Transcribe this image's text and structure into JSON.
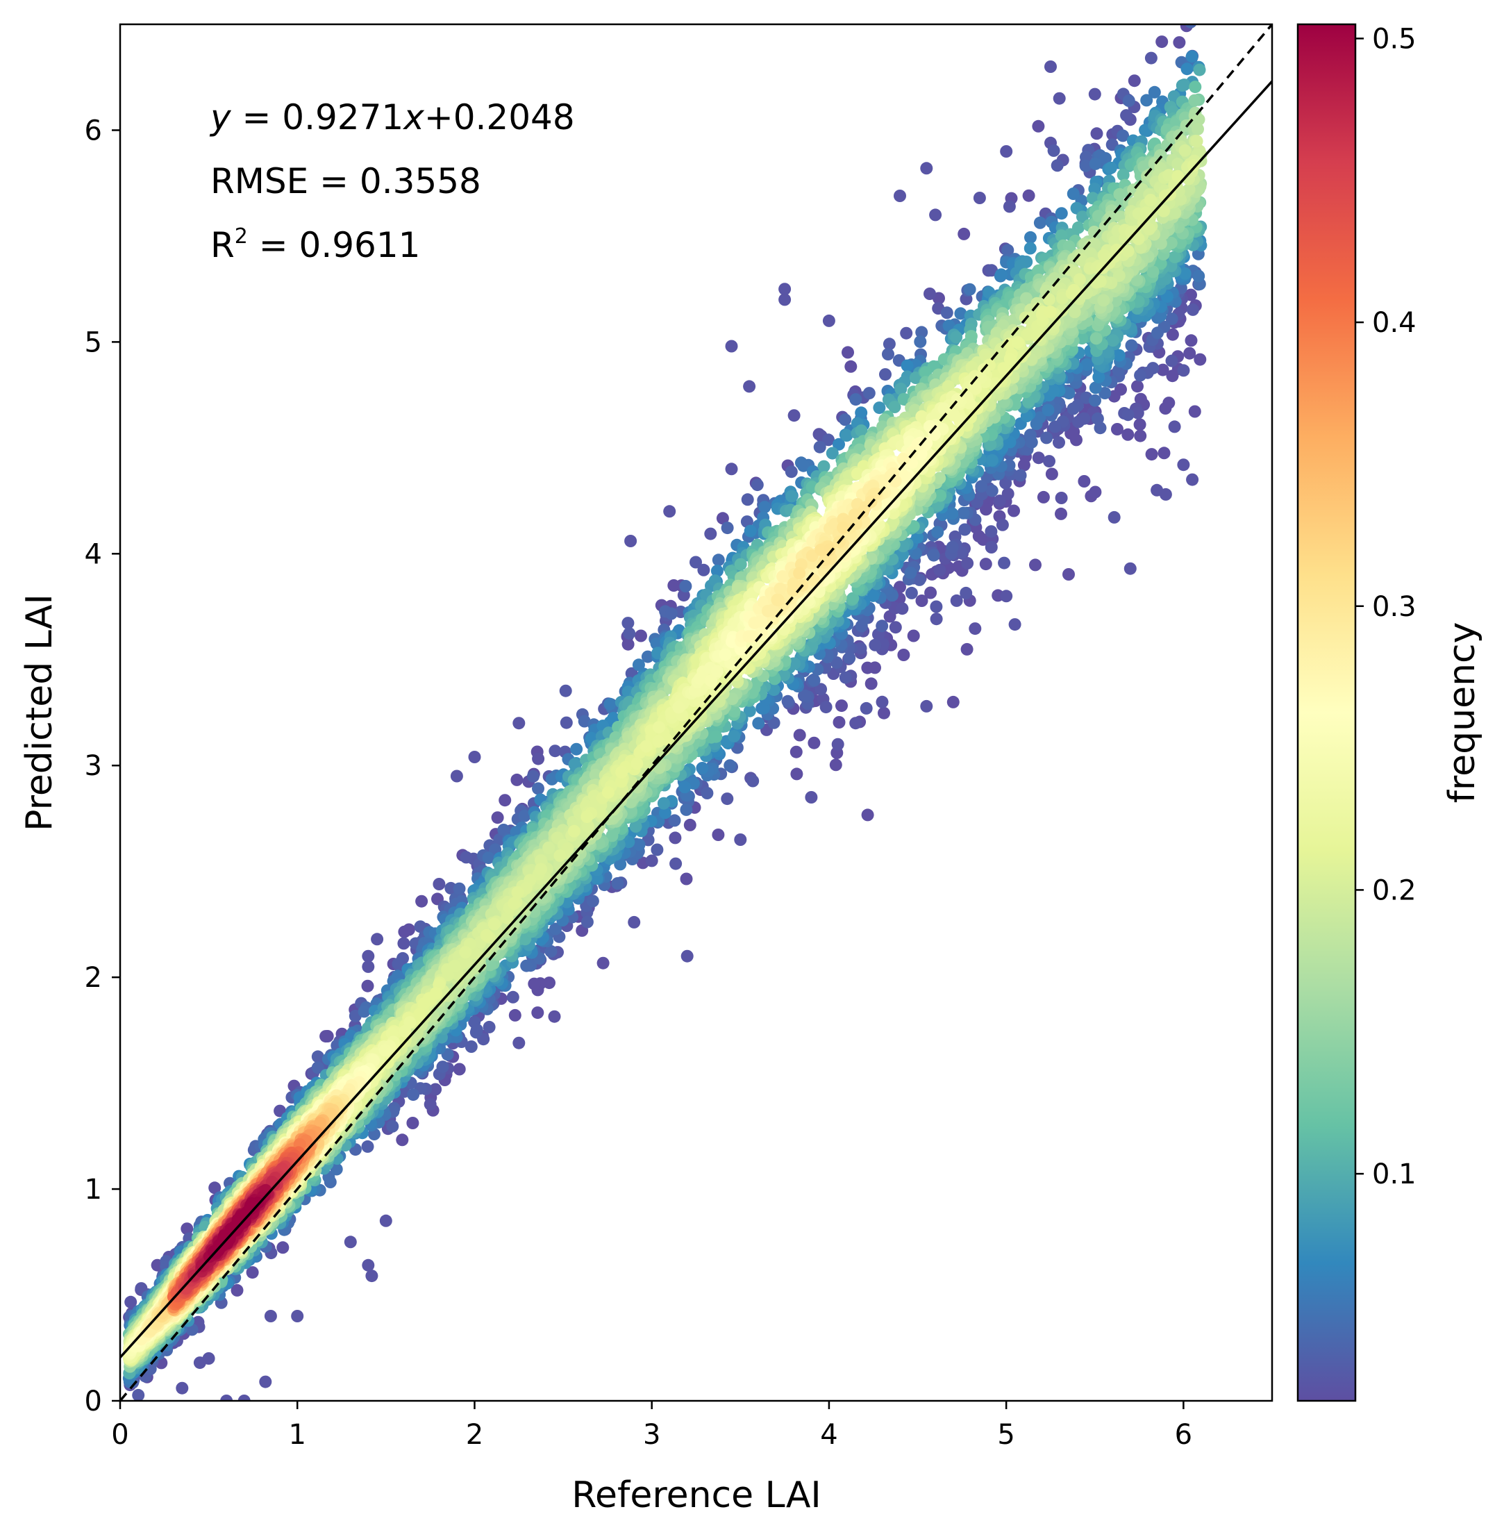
{
  "chart_data": {
    "type": "scatter",
    "subtype": "density-colored scatter",
    "xlabel": "Reference  LAI",
    "ylabel": "Predicted  LAI",
    "xlim": [
      0,
      6.5
    ],
    "ylim": [
      0,
      6.5
    ],
    "xticks": [
      0,
      1,
      2,
      3,
      4,
      5,
      6
    ],
    "yticks": [
      0,
      1,
      2,
      3,
      4,
      5,
      6
    ],
    "grid": false,
    "annotations": {
      "equation_y": "y",
      "equation_x": "x",
      "equation_eq": " = 0.9271",
      "equation_tail": "+0.2048",
      "rmse": "RMSE = 0.3558",
      "r2_base": "R",
      "r2_sup": "2",
      "r2_value": " = 0.9611"
    },
    "fit_line": {
      "slope": 0.9271,
      "intercept": 0.2048,
      "style": "solid",
      "color": "#000000"
    },
    "identity_line": {
      "slope": 1,
      "intercept": 0,
      "style": "dashed",
      "color": "#000000"
    },
    "colorbar": {
      "label": "frequency",
      "range": [
        0.02,
        0.505
      ],
      "ticks": [
        0.1,
        0.2,
        0.3,
        0.4,
        0.5
      ],
      "tick_labels": [
        "0.1",
        "0.2",
        "0.3",
        "0.4",
        "0.5"
      ],
      "colormap": "Spectral_r"
    },
    "data_summary": {
      "x_range": [
        0.05,
        6.1
      ],
      "y_range": [
        0.0,
        6.35
      ],
      "peak_density_x": 0.65,
      "peak_density_y": 0.7
    },
    "outliers": [
      [
        0.6,
        0.0
      ],
      [
        0.7,
        0.0
      ],
      [
        0.82,
        0.09
      ],
      [
        0.35,
        0.06
      ],
      [
        0.45,
        0.18
      ],
      [
        0.5,
        0.2
      ],
      [
        0.85,
        0.4
      ],
      [
        1.0,
        0.4
      ],
      [
        1.3,
        0.75
      ],
      [
        1.42,
        0.59
      ],
      [
        1.4,
        0.64
      ],
      [
        1.5,
        0.85
      ],
      [
        1.75,
        1.4
      ],
      [
        1.85,
        1.57
      ],
      [
        2.25,
        1.69
      ],
      [
        1.45,
        2.18
      ],
      [
        1.4,
        2.1
      ],
      [
        1.4,
        2.05
      ],
      [
        1.6,
        2.16
      ],
      [
        1.8,
        2.44
      ],
      [
        2.0,
        3.04
      ],
      [
        1.9,
        2.95
      ],
      [
        2.25,
        3.2
      ],
      [
        2.9,
        2.26
      ],
      [
        3.0,
        2.55
      ],
      [
        3.2,
        2.1
      ],
      [
        3.5,
        2.65
      ],
      [
        3.9,
        2.85
      ],
      [
        4.15,
        3.2
      ],
      [
        4.05,
        3.1
      ],
      [
        4.3,
        3.3
      ],
      [
        4.55,
        3.28
      ],
      [
        4.3,
        3.55
      ],
      [
        5.0,
        3.8
      ],
      [
        5.7,
        3.93
      ],
      [
        2.88,
        4.06
      ],
      [
        3.1,
        4.2
      ],
      [
        3.45,
        4.4
      ],
      [
        3.55,
        4.79
      ],
      [
        3.45,
        4.98
      ],
      [
        3.75,
        5.2
      ],
      [
        3.75,
        5.25
      ],
      [
        4.0,
        5.1
      ],
      [
        4.4,
        5.69
      ],
      [
        4.6,
        5.6
      ],
      [
        4.55,
        5.82
      ],
      [
        4.85,
        5.68
      ],
      [
        5.0,
        5.9
      ],
      [
        5.3,
        6.15
      ],
      [
        5.25,
        6.3
      ],
      [
        5.5,
        6.17
      ],
      [
        5.7,
        6.05
      ],
      [
        5.25,
        5.94
      ],
      [
        5.6,
        5.98
      ],
      [
        6.05,
        6.35
      ],
      [
        5.95,
        4.6
      ],
      [
        6.05,
        4.35
      ],
      [
        5.85,
        4.3
      ],
      [
        5.9,
        4.28
      ],
      [
        6.0,
        4.42
      ]
    ]
  }
}
